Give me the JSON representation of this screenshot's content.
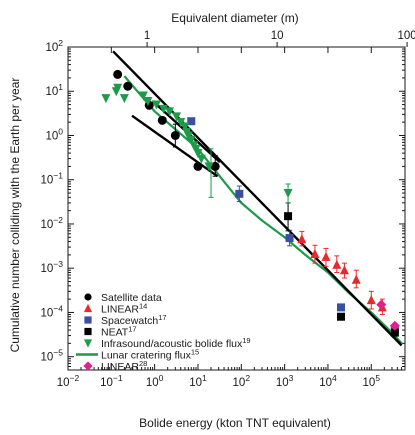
{
  "chart_data": {
    "type": "scatter",
    "xlabel": "Bolide energy (kton TNT equivalent)",
    "ylabel": "Cumulative number colliding with the Earth per year",
    "top_xlabel": "Equivalent diameter (m)",
    "xscale": "log",
    "yscale": "log",
    "xlim": [
      0.01,
      600000
    ],
    "ylim": [
      5e-06,
      100
    ],
    "x_ticks": [
      {
        "value": 0.01,
        "base": "10",
        "exp": "−2"
      },
      {
        "value": 0.1,
        "base": "10",
        "exp": "−1"
      },
      {
        "value": 1,
        "base": "10",
        "exp": "0"
      },
      {
        "value": 10,
        "base": "10",
        "exp": "1"
      },
      {
        "value": 100,
        "base": "10",
        "exp": "2"
      },
      {
        "value": 1000,
        "base": "10",
        "exp": "3"
      },
      {
        "value": 10000,
        "base": "10",
        "exp": "4"
      },
      {
        "value": 100000,
        "base": "10",
        "exp": "5"
      }
    ],
    "y_ticks": [
      {
        "value": 100,
        "base": "10",
        "exp": "2"
      },
      {
        "value": 10,
        "base": "10",
        "exp": "1"
      },
      {
        "value": 1,
        "base": "10",
        "exp": "0"
      },
      {
        "value": 0.1,
        "base": "10",
        "exp": "−1"
      },
      {
        "value": 0.01,
        "base": "10",
        "exp": "−2"
      },
      {
        "value": 0.001,
        "base": "10",
        "exp": "−3"
      },
      {
        "value": 0.0001,
        "base": "10",
        "exp": "−4"
      },
      {
        "value": 1e-05,
        "base": "10",
        "exp": "−5"
      }
    ],
    "top_ticks": [
      {
        "energy": 0.67,
        "label": "1"
      },
      {
        "energy": 670,
        "label": "10"
      },
      {
        "energy": 670000,
        "label": "100"
      }
    ],
    "series": [
      {
        "name": "Satellite data",
        "sup": "",
        "marker": "circle",
        "color": "#000000",
        "points": [
          [
            0.14,
            24
          ],
          [
            0.24,
            13
          ],
          [
            0.75,
            4.8
          ],
          [
            1.5,
            2.2
          ],
          [
            3,
            1.0
          ],
          [
            10,
            0.2
          ],
          [
            25,
            0.2
          ]
        ],
        "errors": [
          [
            3,
            1.0,
            0.55,
            1.8
          ],
          [
            25,
            0.2,
            0.12,
            0.35
          ]
        ]
      },
      {
        "name": "LINEAR",
        "sup": "14",
        "marker": "triangle-up",
        "color": "#e8292b",
        "points": [
          [
            2500,
            0.0045
          ],
          [
            5000,
            0.0021
          ],
          [
            9000,
            0.0018
          ],
          [
            16000,
            0.0012
          ],
          [
            24000,
            0.0009
          ],
          [
            45000,
            0.00055
          ],
          [
            100000,
            0.00019
          ],
          [
            180000,
            0.00013
          ]
        ],
        "errors": [
          [
            2500,
            0.0045,
            0.0032,
            0.0068
          ],
          [
            5000,
            0.0021,
            0.0013,
            0.0033
          ],
          [
            9000,
            0.0018,
            0.0011,
            0.0028
          ],
          [
            16000,
            0.0012,
            0.0008,
            0.0019
          ],
          [
            24000,
            0.0009,
            0.0006,
            0.0013
          ],
          [
            45000,
            0.00055,
            0.00036,
            0.0009
          ],
          [
            100000,
            0.00019,
            0.00012,
            0.0003
          ],
          [
            180000,
            0.00013,
            9e-05,
            0.0002
          ]
        ]
      },
      {
        "name": "Spacewatch",
        "sup": "17",
        "marker": "square",
        "color": "#3a4ea8",
        "points": [
          [
            7,
            2.1
          ],
          [
            90,
            0.048
          ],
          [
            1300,
            0.0048
          ],
          [
            20000,
            0.00013
          ],
          [
            350000,
            4e-05
          ]
        ],
        "errors": [
          [
            90,
            0.048,
            0.032,
            0.072
          ],
          [
            1300,
            0.0048,
            0.0032,
            0.0072
          ]
        ]
      },
      {
        "name": "NEAT",
        "sup": "17",
        "marker": "square",
        "color": "#000000",
        "points": [
          [
            1200,
            0.015
          ],
          [
            20000,
            8e-05
          ],
          [
            350000,
            3.5e-05
          ]
        ],
        "errors": [
          [
            1200,
            0.015,
            0.007,
            0.03
          ]
        ]
      },
      {
        "name": "Infrasound/acoustic bolide flux",
        "sup": "19",
        "marker": "triangle-down",
        "color": "#1d9a4a",
        "points": [
          [
            0.075,
            7
          ],
          [
            0.13,
            10
          ],
          [
            0.14,
            12
          ],
          [
            0.2,
            7
          ],
          [
            0.55,
            8
          ],
          [
            0.7,
            6
          ],
          [
            1.1,
            5
          ],
          [
            1.6,
            4
          ],
          [
            2.2,
            3.5
          ],
          [
            3.2,
            2.7
          ],
          [
            4,
            2
          ],
          [
            5,
            1.6
          ],
          [
            5.5,
            1.2
          ],
          [
            6,
            1.0
          ],
          [
            7,
            0.8
          ],
          [
            8,
            0.6
          ],
          [
            9,
            0.5
          ],
          [
            10,
            0.4
          ],
          [
            12,
            0.3
          ],
          [
            18,
            0.2
          ],
          [
            1200,
            0.05
          ]
        ],
        "errors": [
          [
            20,
            0.2,
            0.04,
            0.5
          ],
          [
            1200,
            0.05,
            0.03,
            0.08
          ]
        ]
      },
      {
        "name": "LINEAR",
        "sup": "28",
        "marker": "diamond",
        "color": "#e0208c",
        "points": [
          [
            170000,
            0.00015
          ],
          [
            350000,
            5e-05
          ]
        ]
      }
    ],
    "lines": [
      {
        "name": "Lunar cratering flux",
        "sup": "15",
        "color": "#1d9a4a",
        "points": [
          [
            0.2,
            22
          ],
          [
            1,
            3.5
          ],
          [
            10,
            0.5
          ],
          [
            40,
            0.09
          ],
          [
            100,
            0.03
          ],
          [
            300,
            0.012
          ],
          [
            1000,
            0.005
          ],
          [
            3000,
            0.002
          ],
          [
            10000,
            0.0008
          ],
          [
            30000,
            0.00028
          ],
          [
            100000,
            0.0001
          ],
          [
            300000,
            3.5e-05
          ],
          [
            500000,
            2e-05
          ]
        ]
      },
      {
        "name": "",
        "sup": "",
        "color": "#000000",
        "points": [
          [
            0.11,
            80
          ],
          [
            500000,
            1.8e-05
          ]
        ]
      },
      {
        "name": "",
        "sup": "",
        "color": "#000000",
        "points": [
          [
            0.3,
            2.8
          ],
          [
            28,
            0.12
          ]
        ]
      },
      {
        "name": "",
        "sup": "",
        "color": "#000000",
        "points": [
          [
            0.9,
            6
          ],
          [
            32,
            0.25
          ]
        ]
      }
    ],
    "legend": {
      "position": "bottom-left",
      "items": [
        {
          "text": "Satellite data",
          "sup": "",
          "marker": "circle",
          "color": "#000000"
        },
        {
          "text": "LINEAR",
          "sup": "14",
          "marker": "triangle-up",
          "color": "#e8292b"
        },
        {
          "text": "Spacewatch",
          "sup": "17",
          "marker": "square",
          "color": "#3a4ea8"
        },
        {
          "text": "NEAT",
          "sup": "17",
          "marker": "square",
          "color": "#000000"
        },
        {
          "text": "Infrasound/acoustic bolide flux",
          "sup": "19",
          "marker": "triangle-down",
          "color": "#1d9a4a"
        },
        {
          "text": "Lunar cratering flux",
          "sup": "15",
          "marker": "line",
          "color": "#1d9a4a"
        },
        {
          "text": "LINEAR",
          "sup": "28",
          "marker": "diamond",
          "color": "#e0208c"
        }
      ]
    }
  }
}
